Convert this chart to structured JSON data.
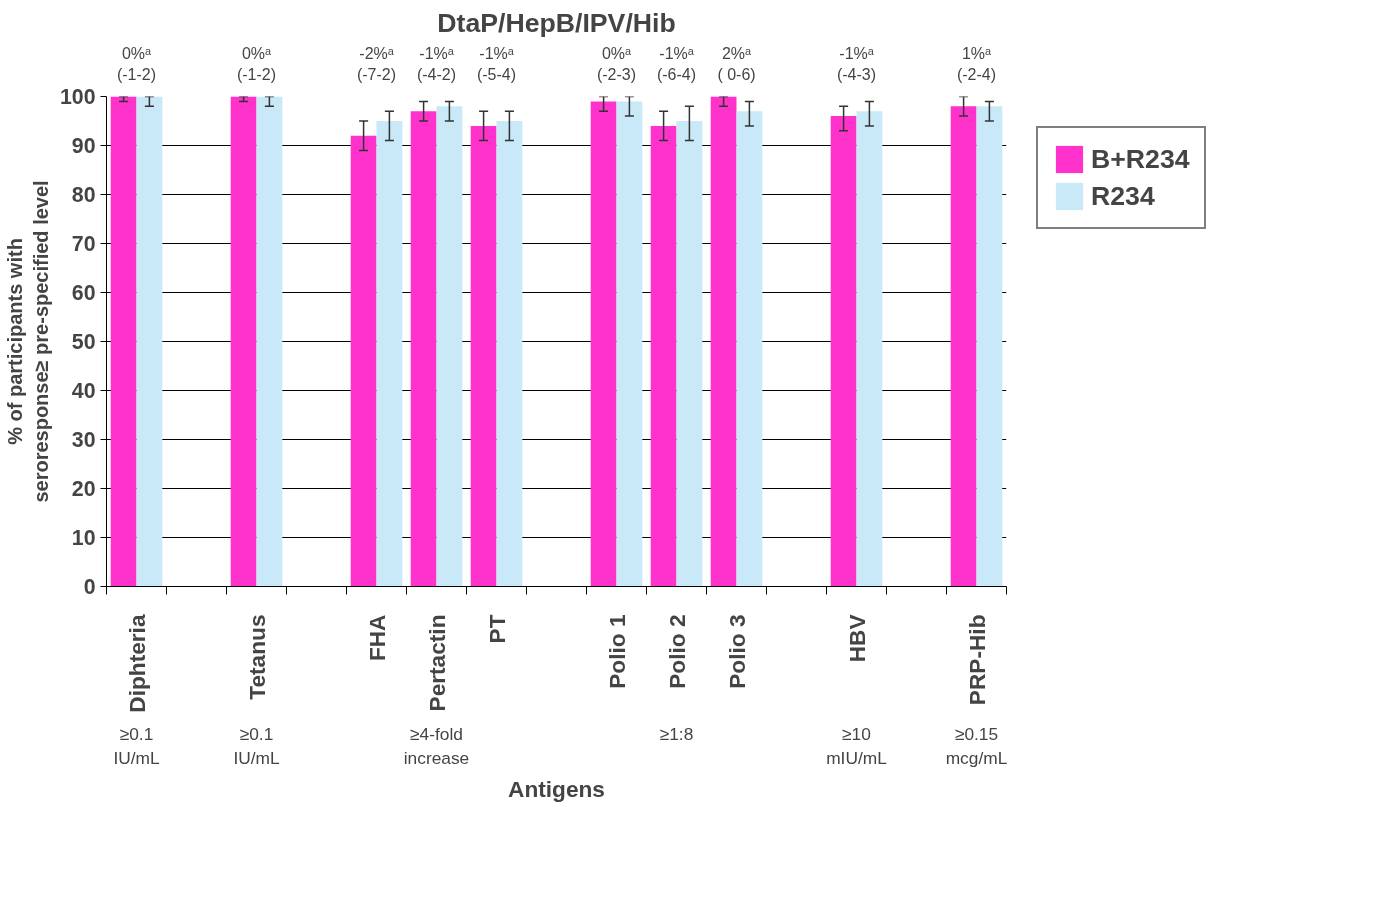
{
  "chart_data": {
    "type": "bar",
    "title": "DtaP/HepB/IPV/Hib",
    "xlabel": "Antigens",
    "ylabel": "% of participants with\nseroresponse≥ pre-specified level",
    "categories": [
      "Diphteria",
      null,
      "Tetanus",
      null,
      "FHA",
      "Pertactin",
      "PT",
      null,
      "Polio 1",
      "Polio 2",
      "Polio 3",
      null,
      "HBV",
      null,
      "PRP-Hib"
    ],
    "series": [
      {
        "name": "B+R234",
        "color": "#ff33cc",
        "values": [
          100,
          null,
          100,
          null,
          92,
          97,
          94,
          null,
          99,
          94,
          100,
          null,
          96,
          null,
          98
        ],
        "errors": [
          [
            99,
            100
          ],
          null,
          [
            99,
            100
          ],
          null,
          [
            89,
            95
          ],
          [
            95,
            99
          ],
          [
            91,
            97
          ],
          null,
          [
            97,
            100
          ],
          [
            91,
            97
          ],
          [
            98,
            100
          ],
          null,
          [
            93,
            98
          ],
          null,
          [
            96,
            100
          ]
        ]
      },
      {
        "name": "R234",
        "color": "#c9e8f8",
        "values": [
          100,
          null,
          100,
          null,
          95,
          98,
          95,
          null,
          99,
          95,
          97,
          null,
          97,
          null,
          98
        ],
        "errors": [
          [
            98,
            100
          ],
          null,
          [
            98,
            100
          ],
          null,
          [
            91,
            97
          ],
          [
            95,
            99
          ],
          [
            91,
            97
          ],
          null,
          [
            96,
            100
          ],
          [
            91,
            98
          ],
          [
            94,
            99
          ],
          null,
          [
            94,
            99
          ],
          null,
          [
            95,
            99
          ]
        ]
      }
    ],
    "ylim": [
      0,
      100
    ],
    "yticks": [
      0,
      10,
      20,
      30,
      40,
      50,
      60,
      70,
      80,
      90,
      100
    ],
    "grid": "y",
    "legend": "right",
    "annotations": [
      "0%ᵃ\n(-1-2)",
      "0%ᵃ\n(-1-2)",
      "-2%ᵃ\n(-7-2)",
      "-1%ᵃ\n(-4-2)",
      "-1%ᵃ\n(-5-4)",
      "0%ᵃ\n(-2-3)",
      "-1%ᵃ\n(-6-4)",
      "2%ᵃ\n( 0-6)",
      "-1%ᵃ\n(-4-3)",
      "1%ᵃ\n(-2-4)",
      "≥0.1\nIU/mL",
      "≥0.1\nIU/mL",
      "≥4-fold\nincrease",
      "≥1:8",
      "≥10\nmIU/mL",
      "≥0.15\nmcg/mL"
    ]
  }
}
